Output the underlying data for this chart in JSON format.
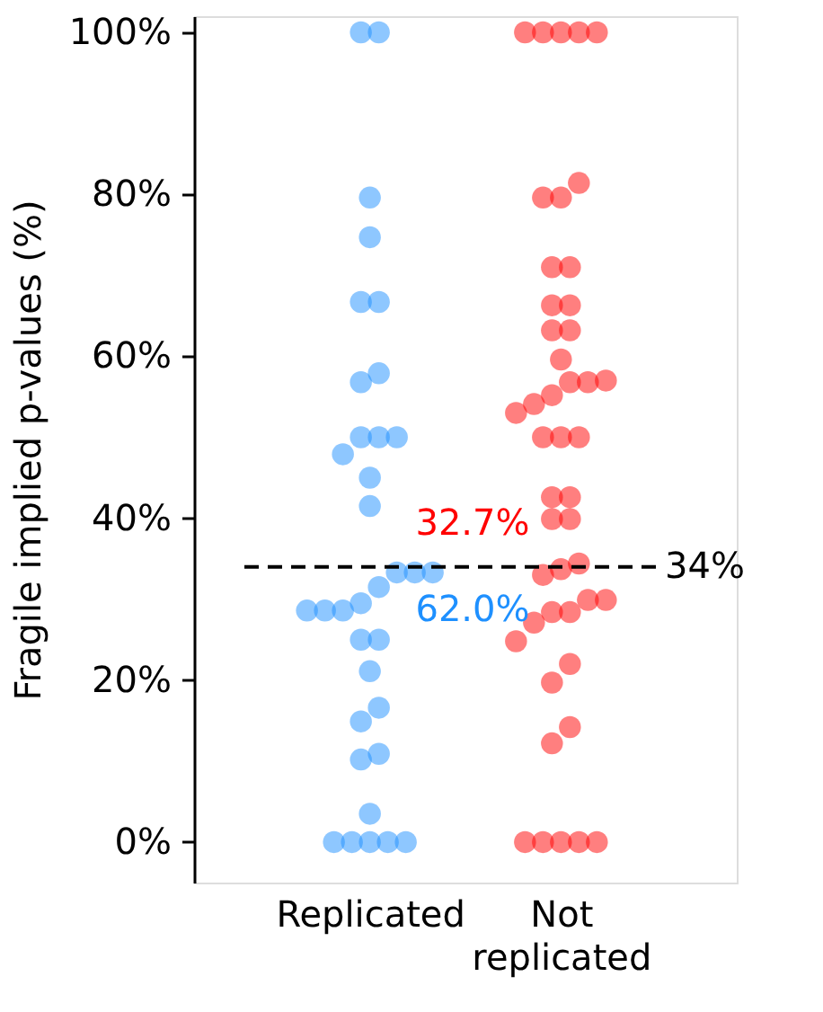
{
  "chart_data": {
    "type": "scatter",
    "ylabel": "Fragile implied p-values (%)",
    "categories": [
      "Replicated",
      "Not replicated"
    ],
    "ylim": [
      -5,
      102
    ],
    "yticks": [
      {
        "value": 0,
        "label": "0%"
      },
      {
        "value": 20,
        "label": "20%"
      },
      {
        "value": 40,
        "label": "40%"
      },
      {
        "value": 60,
        "label": "60%"
      },
      {
        "value": 80,
        "label": "80%"
      },
      {
        "value": 100,
        "label": "100%"
      }
    ],
    "grid": false,
    "marker": "circle",
    "series": [
      {
        "color": "#1e90ff",
        "x": [
          "Replicated",
          "Replicated",
          "Replicated",
          "Replicated",
          "Replicated",
          "Replicated",
          "Replicated",
          "Replicated",
          "Replicated",
          "Replicated",
          "Replicated",
          "Replicated",
          "Replicated",
          "Replicated",
          "Replicated",
          "Replicated",
          "Replicated",
          "Replicated",
          "Replicated",
          "Replicated",
          "Replicated",
          "Replicated",
          "Replicated",
          "Replicated",
          "Replicated",
          "Replicated",
          "Replicated",
          "Replicated",
          "Replicated",
          "Replicated",
          "Replicated",
          "Replicated",
          "Replicated",
          "Replicated",
          "Replicated"
        ],
        "values": [
          100,
          100,
          79.6,
          74.7,
          66.7,
          66.7,
          57.9,
          56.8,
          50,
          50,
          50,
          47.9,
          45,
          41.5,
          33.3,
          33.3,
          33.3,
          31.5,
          28.6,
          28.6,
          28.6,
          29.5,
          25,
          25,
          21.1,
          16.6,
          14.9,
          10.9,
          10.2,
          3.5,
          0,
          0,
          0,
          0,
          0
        ]
      },
      {
        "color": "#ff0000",
        "x": [
          "Not replicated",
          "Not replicated",
          "Not replicated",
          "Not replicated",
          "Not replicated",
          "Not replicated",
          "Not replicated",
          "Not replicated",
          "Not replicated",
          "Not replicated",
          "Not replicated",
          "Not replicated",
          "Not replicated",
          "Not replicated",
          "Not replicated",
          "Not replicated",
          "Not replicated",
          "Not replicated",
          "Not replicated",
          "Not replicated",
          "Not replicated",
          "Not replicated",
          "Not replicated",
          "Not replicated",
          "Not replicated",
          "Not replicated",
          "Not replicated",
          "Not replicated",
          "Not replicated",
          "Not replicated",
          "Not replicated",
          "Not replicated",
          "Not replicated",
          "Not replicated",
          "Not replicated",
          "Not replicated",
          "Not replicated",
          "Not replicated",
          "Not replicated",
          "Not replicated",
          "Not replicated",
          "Not replicated",
          "Not replicated",
          "Not replicated",
          "Not replicated",
          "Not replicated"
        ],
        "values": [
          100,
          100,
          100,
          100,
          100,
          81.4,
          79.6,
          79.6,
          71,
          71,
          66.3,
          66.3,
          63.2,
          63.2,
          59.6,
          56.8,
          56.8,
          57,
          55.2,
          54.1,
          53,
          50,
          50,
          50,
          42.6,
          42.6,
          39.9,
          39.9,
          33.7,
          34.4,
          33,
          29.9,
          29.9,
          28.4,
          28.4,
          27.1,
          24.8,
          22,
          19.7,
          14.2,
          12.2,
          0,
          0,
          0,
          0,
          0
        ]
      }
    ],
    "ref_lines": [
      {
        "axis": "y",
        "value": 34,
        "label": "34%",
        "color": "#000000",
        "line_style": "dashed"
      }
    ],
    "annotations": [
      "32.7%",
      "62.0%"
    ]
  }
}
